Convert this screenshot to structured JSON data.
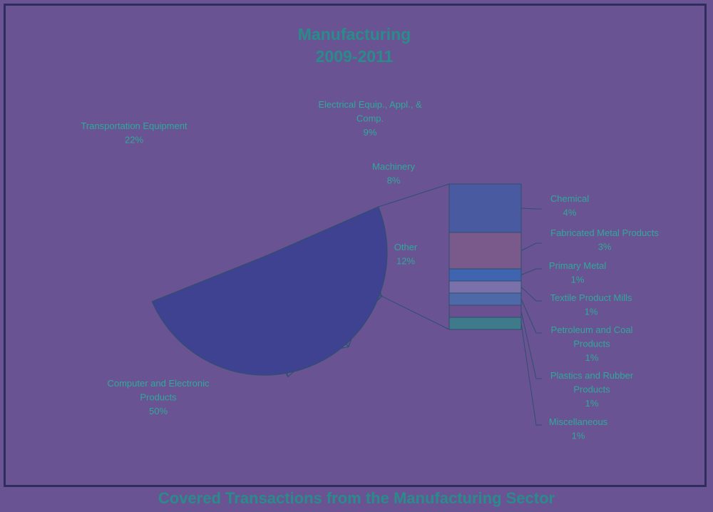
{
  "chart_data": {
    "type": "pie",
    "title": [
      "Manufacturing",
      "2009-2011"
    ],
    "caption": "Covered Transactions from the Manufacturing Sector",
    "slices": [
      {
        "name": "computer",
        "label": [
          "Computer and Electronic",
          "Products"
        ],
        "pct": "50%",
        "value": 50,
        "color": "#3f4290"
      },
      {
        "name": "transportation",
        "label": [
          "Transportation Equipment"
        ],
        "pct": "22%",
        "value": 22,
        "color": "#6a3d80"
      },
      {
        "name": "electrical",
        "label": [
          "Electrical Equip., Appl., &",
          "Comp."
        ],
        "pct": "9%",
        "value": 9,
        "color": "#6a5a92"
      },
      {
        "name": "machinery",
        "label": [
          "Machinery"
        ],
        "pct": "8%",
        "value": 8,
        "color": "#55589a"
      },
      {
        "name": "other",
        "label": [
          "Other"
        ],
        "pct": "12%",
        "value": 12,
        "color": "#6b4d90"
      }
    ],
    "other_breakdown": [
      {
        "name": "chemical",
        "label": [
          "Chemical"
        ],
        "pct": "4%",
        "value": 4,
        "color": "#4a5aa0"
      },
      {
        "name": "fabricated-metal",
        "label": [
          "Fabricated Metal Products"
        ],
        "pct": "3%",
        "value": 3,
        "color": "#7a5a8a"
      },
      {
        "name": "primary-metal",
        "label": [
          "Primary Metal"
        ],
        "pct": "1%",
        "value": 1,
        "color": "#3f65b0"
      },
      {
        "name": "textile",
        "label": [
          "Textile Product Mills"
        ],
        "pct": "1%",
        "value": 1,
        "color": "#7a70aa"
      },
      {
        "name": "petroleum",
        "label": [
          "Petroleum and Coal",
          "Products"
        ],
        "pct": "1%",
        "value": 1,
        "color": "#4f68a8"
      },
      {
        "name": "plastics",
        "label": [
          "Plastics and Rubber",
          "Products"
        ],
        "pct": "1%",
        "value": 1,
        "color": "#6a5090"
      },
      {
        "name": "miscellaneous",
        "label": [
          "Miscellaneous"
        ],
        "pct": "1%",
        "value": 1,
        "color": "#3f7a8a"
      }
    ]
  }
}
